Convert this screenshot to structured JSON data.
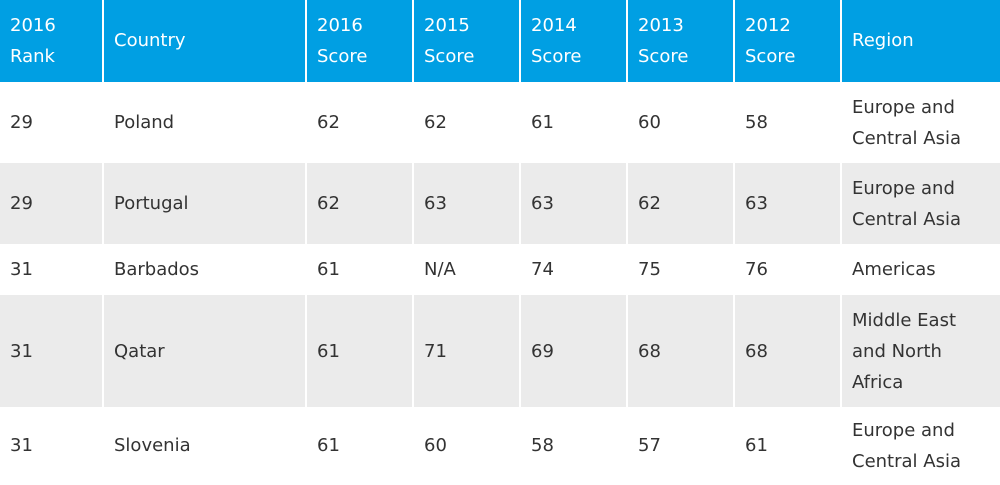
{
  "table": {
    "headers": {
      "rank_line1": "2016",
      "rank_line2": "Rank",
      "country": "Country",
      "s2016_line1": "2016",
      "s2016_line2": "Score",
      "s2015_line1": "2015",
      "s2015_line2": "Score",
      "s2014_line1": "2014",
      "s2014_line2": "Score",
      "s2013_line1": "2013",
      "s2013_line2": "Score",
      "s2012_line1": "2012",
      "s2012_line2": "Score",
      "region": "Region"
    },
    "rows": [
      {
        "rank": "29",
        "country": "Poland",
        "s2016": "62",
        "s2015": "62",
        "s2014": "61",
        "s2013": "60",
        "s2012": "58",
        "region_line1": "Europe and",
        "region_line2": "Central Asia",
        "region_line3": ""
      },
      {
        "rank": "29",
        "country": "Portugal",
        "s2016": "62",
        "s2015": "63",
        "s2014": "63",
        "s2013": "62",
        "s2012": "63",
        "region_line1": "Europe and",
        "region_line2": "Central Asia",
        "region_line3": ""
      },
      {
        "rank": "31",
        "country": "Barbados",
        "s2016": "61",
        "s2015": "N/A",
        "s2014": "74",
        "s2013": "75",
        "s2012": "76",
        "region_line1": "Americas",
        "region_line2": "",
        "region_line3": ""
      },
      {
        "rank": "31",
        "country": "Qatar",
        "s2016": "61",
        "s2015": "71",
        "s2014": "69",
        "s2013": "68",
        "s2012": "68",
        "region_line1": "Middle East",
        "region_line2": "and North",
        "region_line3": "Africa"
      },
      {
        "rank": "31",
        "country": "Slovenia",
        "s2016": "61",
        "s2015": "60",
        "s2014": "58",
        "s2013": "57",
        "s2012": "61",
        "region_line1": "Europe and",
        "region_line2": "Central Asia",
        "region_line3": ""
      }
    ]
  }
}
